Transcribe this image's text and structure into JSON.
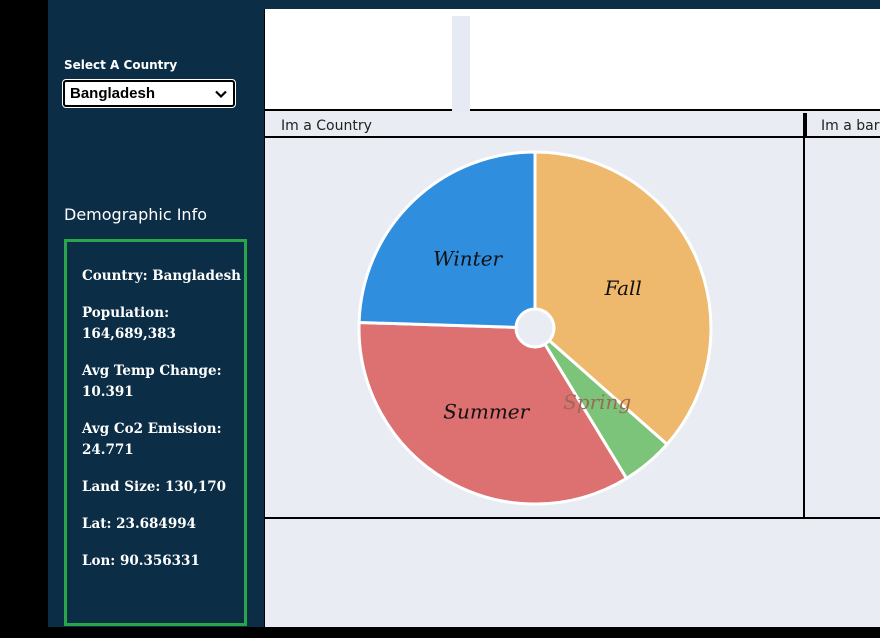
{
  "sidebar": {
    "select_label": "Select A Country",
    "selected_country": "Bangladesh",
    "demographic_title": "Demographic Info",
    "items": [
      {
        "text": "Country: Bangladesh"
      },
      {
        "text": "Population: 164,689,383"
      },
      {
        "text": "Avg Temp Change: 10.391"
      },
      {
        "text": "Avg Co2 Emission: 24.771"
      },
      {
        "text": "Land Size: 130,170"
      },
      {
        "text": "Lat: 23.684994"
      },
      {
        "text": "Lon: 90.356331"
      }
    ]
  },
  "panels": {
    "country_title": "Im a Country",
    "bar_title": "Im a bar"
  },
  "chart_data": {
    "type": "pie",
    "donut_hole": true,
    "slices": [
      {
        "label": "Fall",
        "value": 36.5,
        "color": "#eeb96d"
      },
      {
        "label": "Spring",
        "value": 4.8,
        "color": "#7bc47a"
      },
      {
        "label": "Summer",
        "value": 34.2,
        "color": "#dd7071"
      },
      {
        "label": "Winter",
        "value": 24.5,
        "color": "#2f8ede"
      }
    ]
  }
}
